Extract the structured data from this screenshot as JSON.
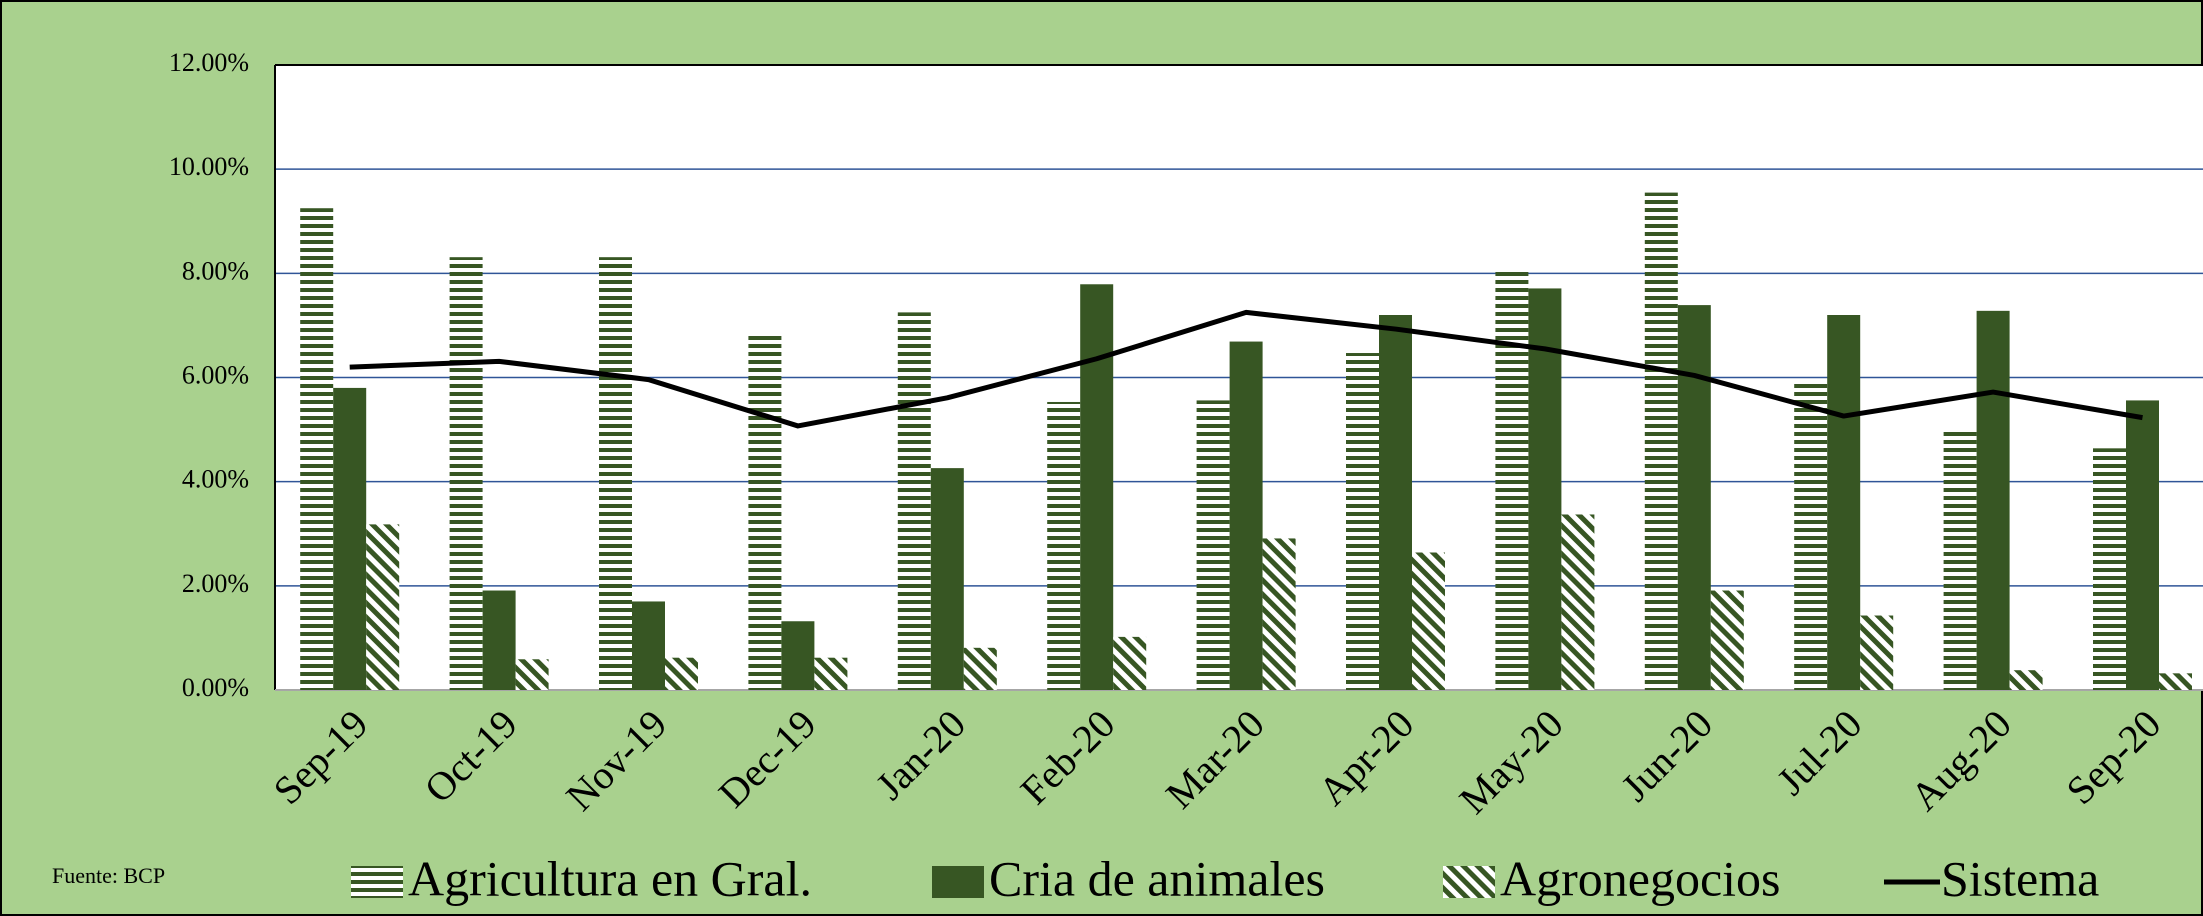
{
  "chart_data": {
    "type": "bar",
    "categories": [
      "Sep-19",
      "Oct-19",
      "Nov-19",
      "Dec-19",
      "Jan-20",
      "Feb-20",
      "Mar-20",
      "Apr-20",
      "May-20",
      "Jun-20",
      "Jul-20",
      "Aug-20",
      "Sep-20"
    ],
    "series": [
      {
        "name": "Agricultura en Gral.",
        "type": "bar",
        "pattern": "horizontal",
        "color": "#375623",
        "values": [
          9.25,
          8.31,
          8.31,
          6.8,
          7.25,
          5.53,
          5.56,
          6.47,
          8.04,
          9.55,
          5.9,
          4.96,
          4.64
        ]
      },
      {
        "name": "Cria de animales",
        "type": "bar",
        "pattern": "solid",
        "color": "#375623",
        "values": [
          5.8,
          1.91,
          1.7,
          1.32,
          4.26,
          7.79,
          6.69,
          7.2,
          7.71,
          7.39,
          7.2,
          7.28,
          5.56
        ]
      },
      {
        "name": "Agronegocios",
        "type": "bar",
        "pattern": "diagonal",
        "color": "#375623",
        "values": [
          3.18,
          0.59,
          0.62,
          0.62,
          0.81,
          1.02,
          2.91,
          2.64,
          3.37,
          1.91,
          1.43,
          0.38,
          0.32
        ]
      },
      {
        "name": "Sistema",
        "type": "line",
        "color": "#000000",
        "values": [
          6.2,
          6.31,
          5.96,
          5.07,
          5.61,
          6.36,
          7.25,
          6.93,
          6.55,
          6.04,
          5.26,
          5.72,
          5.23
        ]
      }
    ],
    "ylim": [
      0,
      12
    ],
    "yticks": [
      {
        "value": 0,
        "label": "0.00%"
      },
      {
        "value": 2,
        "label": "2.00%"
      },
      {
        "value": 4,
        "label": "4.00%"
      },
      {
        "value": 6,
        "label": "6.00%"
      },
      {
        "value": 8,
        "label": "8.00%"
      },
      {
        "value": 10,
        "label": "10.00%"
      },
      {
        "value": 12,
        "label": "12.00%"
      }
    ],
    "grid": true,
    "legend_position": "bottom",
    "source": "Fuente: BCP"
  }
}
